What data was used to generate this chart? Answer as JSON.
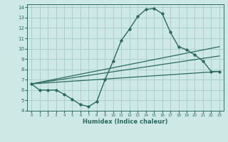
{
  "xlabel": "Humidex (Indice chaleur)",
  "xlim": [
    -0.5,
    23.5
  ],
  "ylim": [
    4,
    14.3
  ],
  "xticks": [
    0,
    1,
    2,
    3,
    4,
    5,
    6,
    7,
    8,
    9,
    10,
    11,
    12,
    13,
    14,
    15,
    16,
    17,
    18,
    19,
    20,
    21,
    22,
    23
  ],
  "yticks": [
    4,
    5,
    6,
    7,
    8,
    9,
    10,
    11,
    12,
    13,
    14
  ],
  "bg_color": "#cde8e5",
  "line_color": "#2a6b60",
  "grid_color": "#aacfcc",
  "line1_x": [
    0,
    1,
    2,
    3,
    4,
    5,
    6,
    7,
    8,
    9,
    10,
    11,
    12,
    13,
    14,
    15,
    16,
    17,
    18,
    19,
    20,
    21,
    22,
    23
  ],
  "line1_y": [
    6.6,
    6.0,
    6.0,
    6.0,
    5.6,
    5.1,
    4.6,
    4.4,
    4.9,
    7.0,
    8.8,
    10.8,
    11.9,
    13.1,
    13.8,
    13.9,
    13.4,
    11.6,
    10.2,
    9.9,
    9.4,
    8.8,
    7.8,
    7.8
  ],
  "line2_x": [
    0,
    23
  ],
  "line2_y": [
    6.6,
    10.2
  ],
  "line3_x": [
    0,
    23
  ],
  "line3_y": [
    6.6,
    9.3
  ],
  "line4_x": [
    0,
    23
  ],
  "line4_y": [
    6.6,
    7.8
  ]
}
